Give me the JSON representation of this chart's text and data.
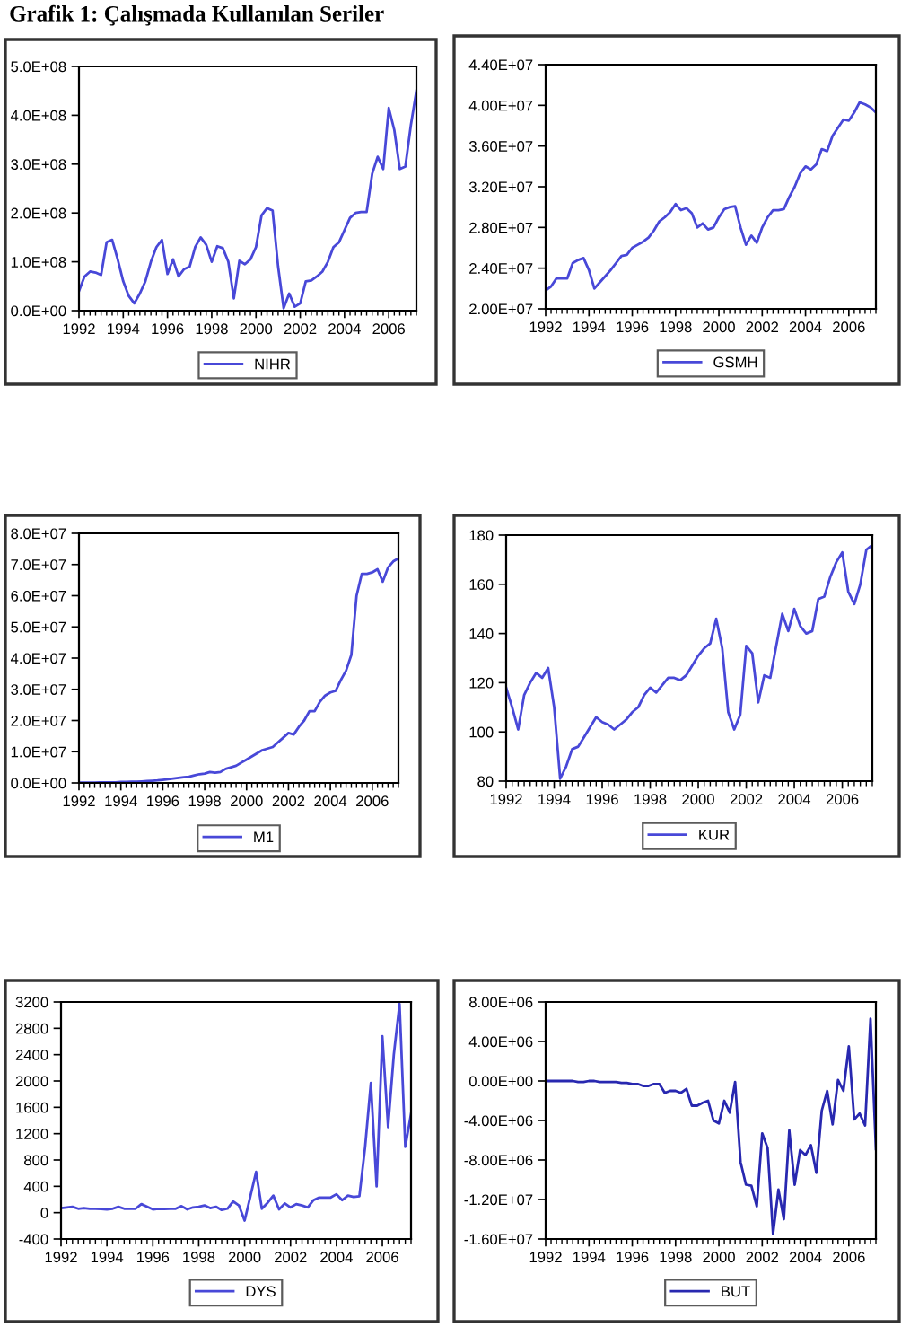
{
  "chart_data": [
    {
      "type": "line",
      "title": "Grafik 1: Çalışmada Kullanılan Seriler",
      "legend": "bottom",
      "grid": false,
      "x": [
        1992,
        1992.25,
        1992.5,
        1992.75,
        1993,
        1993.25,
        1993.5,
        1993.75,
        1994,
        1994.25,
        1994.5,
        1994.75,
        1995,
        1995.25,
        1995.5,
        1995.75,
        1996,
        1996.25,
        1996.5,
        1996.75,
        1997,
        1997.25,
        1997.5,
        1997.75,
        1998,
        1998.25,
        1998.5,
        1998.75,
        1999,
        1999.25,
        1999.5,
        1999.75,
        2000,
        2000.25,
        2000.5,
        2000.75,
        2001,
        2001.25,
        2001.5,
        2001.75,
        2002,
        2002.25,
        2002.5,
        2002.75,
        2003,
        2003.25,
        2003.5,
        2003.75,
        2004,
        2004.25,
        2004.5,
        2004.75,
        2005,
        2005.25,
        2005.5,
        2005.75,
        2006,
        2006.25,
        2006.5,
        2006.75,
        2007,
        2007.25
      ],
      "xlim": [
        1992,
        2007.25
      ],
      "xticks": [
        1992,
        1994,
        1996,
        1998,
        2000,
        2002,
        2004,
        2006
      ],
      "ylim": [
        0,
        500000000.0
      ],
      "yticks": [
        {
          "value": 0,
          "label": "0.0E+00"
        },
        {
          "value": 100000000.0,
          "label": "1.0E+08"
        },
        {
          "value": 200000000.0,
          "label": "2.0E+08"
        },
        {
          "value": 300000000.0,
          "label": "3.0E+08"
        },
        {
          "value": 400000000.0,
          "label": "4.0E+08"
        },
        {
          "value": 500000000.0,
          "label": "5.0E+08"
        }
      ],
      "series": [
        {
          "name": "NIHR",
          "color": "#4848d8",
          "values": [
            40000000.0,
            70000000.0,
            80000000.0,
            78000000.0,
            73000000.0,
            140000000.0,
            145000000.0,
            105000000.0,
            60000000.0,
            30000000.0,
            15000000.0,
            35000000.0,
            60000000.0,
            100000000.0,
            130000000.0,
            145000000.0,
            75000000.0,
            105000000.0,
            70000000.0,
            85000000.0,
            90000000.0,
            130000000.0,
            150000000.0,
            135000000.0,
            100000000.0,
            132000000.0,
            128000000.0,
            100000000.0,
            25000000.0,
            102000000.0,
            95000000.0,
            105000000.0,
            130000000.0,
            195000000.0,
            210000000.0,
            205000000.0,
            90000000.0,
            5000000.0,
            35000000.0,
            8000000.0,
            15000000.0,
            60000000.0,
            62000000.0,
            70000000.0,
            80000000.0,
            100000000.0,
            130000000.0,
            140000000.0,
            165000000.0,
            190000000.0,
            200000000.0,
            202000000.0,
            202000000.0,
            280000000.0,
            315000000.0,
            290000000.0,
            415000000.0,
            370000000.0,
            290000000.0,
            295000000.0,
            380000000.0,
            450000000.0
          ]
        }
      ]
    },
    {
      "type": "line",
      "legend": "bottom",
      "grid": false,
      "x": [
        1992,
        1992.25,
        1992.5,
        1992.75,
        1993,
        1993.25,
        1993.5,
        1993.75,
        1994,
        1994.25,
        1994.5,
        1994.75,
        1995,
        1995.25,
        1995.5,
        1995.75,
        1996,
        1996.25,
        1996.5,
        1996.75,
        1997,
        1997.25,
        1997.5,
        1997.75,
        1998,
        1998.25,
        1998.5,
        1998.75,
        1999,
        1999.25,
        1999.5,
        1999.75,
        2000,
        2000.25,
        2000.5,
        2000.75,
        2001,
        2001.25,
        2001.5,
        2001.75,
        2002,
        2002.25,
        2002.5,
        2002.75,
        2003,
        2003.25,
        2003.5,
        2003.75,
        2004,
        2004.25,
        2004.5,
        2004.75,
        2005,
        2005.25,
        2005.5,
        2005.75,
        2006,
        2006.25,
        2006.5,
        2006.75,
        2007,
        2007.25
      ],
      "xlim": [
        1992,
        2007.25
      ],
      "xticks": [
        1992,
        1994,
        1996,
        1998,
        2000,
        2002,
        2004,
        2006
      ],
      "ylim": [
        20000000.0,
        44000000.0
      ],
      "yticks": [
        {
          "value": 20000000.0,
          "label": "2.00E+07"
        },
        {
          "value": 24000000.0,
          "label": "2.40E+07"
        },
        {
          "value": 28000000.0,
          "label": "2.80E+07"
        },
        {
          "value": 32000000.0,
          "label": "3.20E+07"
        },
        {
          "value": 36000000.0,
          "label": "3.60E+07"
        },
        {
          "value": 40000000.0,
          "label": "4.00E+07"
        },
        {
          "value": 44000000.0,
          "label": "4.40E+07"
        }
      ],
      "series": [
        {
          "name": "GSMH",
          "color": "#4848d8",
          "values": [
            21800000.0,
            22200000.0,
            23000000.0,
            23000000.0,
            23000000.0,
            24500000.0,
            24800000.0,
            25000000.0,
            23800000.0,
            22000000.0,
            22600000.0,
            23200000.0,
            23800000.0,
            24500000.0,
            25200000.0,
            25300000.0,
            26000000.0,
            26300000.0,
            26600000.0,
            27000000.0,
            27700000.0,
            28600000.0,
            29000000.0,
            29500000.0,
            30300000.0,
            29700000.0,
            29900000.0,
            29400000.0,
            28000000.0,
            28400000.0,
            27800000.0,
            28000000.0,
            29000000.0,
            29800000.0,
            30000000.0,
            30100000.0,
            28000000.0,
            26300000.0,
            27200000.0,
            26500000.0,
            28000000.0,
            29000000.0,
            29700000.0,
            29700000.0,
            29800000.0,
            31000000.0,
            32000000.0,
            33300000.0,
            34000000.0,
            33700000.0,
            34200000.0,
            35700000.0,
            35500000.0,
            37000000.0,
            37800000.0,
            38600000.0,
            38500000.0,
            39300000.0,
            40300000.0,
            40100000.0,
            39800000.0,
            39300000.0
          ]
        }
      ]
    },
    {
      "type": "line",
      "legend": "bottom",
      "grid": false,
      "x": [
        1992,
        1992.25,
        1992.5,
        1992.75,
        1993,
        1993.25,
        1993.5,
        1993.75,
        1994,
        1994.25,
        1994.5,
        1994.75,
        1995,
        1995.25,
        1995.5,
        1995.75,
        1996,
        1996.25,
        1996.5,
        1996.75,
        1997,
        1997.25,
        1997.5,
        1997.75,
        1998,
        1998.25,
        1998.5,
        1998.75,
        1999,
        1999.25,
        1999.5,
        1999.75,
        2000,
        2000.25,
        2000.5,
        2000.75,
        2001,
        2001.25,
        2001.5,
        2001.75,
        2002,
        2002.25,
        2002.5,
        2002.75,
        2003,
        2003.25,
        2003.5,
        2003.75,
        2004,
        2004.25,
        2004.5,
        2004.75,
        2005,
        2005.25,
        2005.5,
        2005.75,
        2006,
        2006.25,
        2006.5,
        2006.75,
        2007,
        2007.25
      ],
      "xlim": [
        1992,
        2007.25
      ],
      "xticks": [
        1992,
        1994,
        1996,
        1998,
        2000,
        2002,
        2004,
        2006
      ],
      "ylim": [
        0,
        80000000.0
      ],
      "yticks": [
        {
          "value": 0,
          "label": "0.0E+00"
        },
        {
          "value": 10000000.0,
          "label": "1.0E+07"
        },
        {
          "value": 20000000.0,
          "label": "2.0E+07"
        },
        {
          "value": 30000000.0,
          "label": "3.0E+07"
        },
        {
          "value": 40000000.0,
          "label": "4.0E+07"
        },
        {
          "value": 50000000.0,
          "label": "5.0E+07"
        },
        {
          "value": 60000000.0,
          "label": "6.0E+07"
        },
        {
          "value": 70000000.0,
          "label": "7.0E+07"
        },
        {
          "value": 80000000.0,
          "label": "8.0E+07"
        }
      ],
      "series": [
        {
          "name": "M1",
          "color": "#4848d8",
          "values": [
            100000.0,
            100000.0,
            100000.0,
            100000.0,
            200000.0,
            200000.0,
            200000.0,
            200000.0,
            300000.0,
            300000.0,
            400000.0,
            400000.0,
            500000.0,
            600000.0,
            700000.0,
            800000.0,
            1000000.0,
            1200000.0,
            1400000.0,
            1600000.0,
            1800000.0,
            2000000.0,
            2400000.0,
            2800000.0,
            3000000.0,
            3500000.0,
            3300000.0,
            3500000.0,
            4500000.0,
            5000000.0,
            5500000.0,
            6500000.0,
            7500000.0,
            8500000.0,
            9500000.0,
            10500000.0,
            11000000.0,
            11500000.0,
            13000000.0,
            14500000.0,
            16000000.0,
            15500000.0,
            18000000.0,
            20000000.0,
            23000000.0,
            23000000.0,
            26000000.0,
            28000000.0,
            29000000.0,
            29500000.0,
            33000000.0,
            36000000.0,
            41000000.0,
            60000000.0,
            67000000.0,
            67000000.0,
            67500000.0,
            68500000.0,
            64500000.0,
            69000000.0,
            71000000.0,
            72000000.0
          ]
        }
      ]
    },
    {
      "type": "line",
      "legend": "bottom",
      "grid": false,
      "x": [
        1992,
        1992.25,
        1992.5,
        1992.75,
        1993,
        1993.25,
        1993.5,
        1993.75,
        1994,
        1994.25,
        1994.5,
        1994.75,
        1995,
        1995.25,
        1995.5,
        1995.75,
        1996,
        1996.25,
        1996.5,
        1996.75,
        1997,
        1997.25,
        1997.5,
        1997.75,
        1998,
        1998.25,
        1998.5,
        1998.75,
        1999,
        1999.25,
        1999.5,
        1999.75,
        2000,
        2000.25,
        2000.5,
        2000.75,
        2001,
        2001.25,
        2001.5,
        2001.75,
        2002,
        2002.25,
        2002.5,
        2002.75,
        2003,
        2003.25,
        2003.5,
        2003.75,
        2004,
        2004.25,
        2004.5,
        2004.75,
        2005,
        2005.25,
        2005.5,
        2005.75,
        2006,
        2006.25,
        2006.5,
        2006.75,
        2007,
        2007.25
      ],
      "xlim": [
        1992,
        2007.25
      ],
      "xticks": [
        1992,
        1994,
        1996,
        1998,
        2000,
        2002,
        2004,
        2006
      ],
      "ylim": [
        80,
        180
      ],
      "yticks": [
        80,
        100,
        120,
        140,
        160,
        180
      ],
      "series": [
        {
          "name": "KUR",
          "color": "#4848d8",
          "values": [
            118,
            110,
            101,
            115,
            120,
            124,
            122,
            126,
            110,
            81,
            86,
            93,
            94,
            98,
            102,
            106,
            104,
            103,
            101,
            103,
            105,
            108,
            110,
            115,
            118,
            116,
            119,
            122,
            122,
            121,
            123,
            127,
            131,
            134,
            136,
            146,
            134,
            108,
            101,
            107,
            135,
            132,
            112,
            123,
            122,
            135,
            148,
            141,
            150,
            143,
            140,
            141,
            154,
            155,
            163,
            169,
            173,
            157,
            152,
            160,
            174,
            176
          ]
        }
      ]
    },
    {
      "type": "line",
      "legend": "bottom",
      "grid": false,
      "x": [
        1992,
        1992.25,
        1992.5,
        1992.75,
        1993,
        1993.25,
        1993.5,
        1993.75,
        1994,
        1994.25,
        1994.5,
        1994.75,
        1995,
        1995.25,
        1995.5,
        1995.75,
        1996,
        1996.25,
        1996.5,
        1996.75,
        1997,
        1997.25,
        1997.5,
        1997.75,
        1998,
        1998.25,
        1998.5,
        1998.75,
        1999,
        1999.25,
        1999.5,
        1999.75,
        2000,
        2000.25,
        2000.5,
        2000.75,
        2001,
        2001.25,
        2001.5,
        2001.75,
        2002,
        2002.25,
        2002.5,
        2002.75,
        2003,
        2003.25,
        2003.5,
        2003.75,
        2004,
        2004.25,
        2004.5,
        2004.75,
        2005,
        2005.25,
        2005.5,
        2005.75,
        2006,
        2006.25,
        2006.5,
        2006.75,
        2007,
        2007.25
      ],
      "xlim": [
        1992,
        2007.25
      ],
      "xticks": [
        1992,
        1994,
        1996,
        1998,
        2000,
        2002,
        2004,
        2006
      ],
      "ylim": [
        -400,
        3200
      ],
      "yticks": [
        -400,
        0,
        400,
        800,
        1200,
        1600,
        2000,
        2400,
        2800,
        3200
      ],
      "series": [
        {
          "name": "DYS",
          "color": "#4848d8",
          "values": [
            70,
            80,
            90,
            60,
            70,
            60,
            60,
            55,
            50,
            60,
            90,
            60,
            60,
            60,
            130,
            90,
            50,
            60,
            55,
            60,
            60,
            100,
            50,
            80,
            90,
            110,
            70,
            90,
            40,
            60,
            170,
            110,
            -120,
            250,
            620,
            60,
            150,
            260,
            50,
            140,
            80,
            130,
            110,
            80,
            190,
            230,
            230,
            230,
            280,
            190,
            260,
            240,
            250,
            1000,
            1970,
            400,
            2680,
            1300,
            2400,
            3170,
            1000,
            1500
          ]
        }
      ]
    },
    {
      "type": "line",
      "legend": "bottom",
      "grid": false,
      "x": [
        1992,
        1992.25,
        1992.5,
        1992.75,
        1993,
        1993.25,
        1993.5,
        1993.75,
        1994,
        1994.25,
        1994.5,
        1994.75,
        1995,
        1995.25,
        1995.5,
        1995.75,
        1996,
        1996.25,
        1996.5,
        1996.75,
        1997,
        1997.25,
        1997.5,
        1997.75,
        1998,
        1998.25,
        1998.5,
        1998.75,
        1999,
        1999.25,
        1999.5,
        1999.75,
        2000,
        2000.25,
        2000.5,
        2000.75,
        2001,
        2001.25,
        2001.5,
        2001.75,
        2002,
        2002.25,
        2002.5,
        2002.75,
        2003,
        2003.25,
        2003.5,
        2003.75,
        2004,
        2004.25,
        2004.5,
        2004.75,
        2005,
        2005.25,
        2005.5,
        2005.75,
        2006,
        2006.25,
        2006.5,
        2006.75,
        2007,
        2007.25
      ],
      "xlim": [
        1992,
        2007.25
      ],
      "xticks": [
        1992,
        1994,
        1996,
        1998,
        2000,
        2002,
        2004,
        2006
      ],
      "ylim": [
        -16000000.0,
        8000000.0
      ],
      "yticks": [
        {
          "value": -16000000.0,
          "label": "-1.60E+07"
        },
        {
          "value": -12000000.0,
          "label": "-1.20E+07"
        },
        {
          "value": -8000000.0,
          "label": "-8.00E+06"
        },
        {
          "value": -4000000.0,
          "label": "-4.00E+06"
        },
        {
          "value": 0,
          "label": "0.00E+00"
        },
        {
          "value": 4000000.0,
          "label": "4.00E+06"
        },
        {
          "value": 8000000.0,
          "label": "8.00E+06"
        }
      ],
      "series": [
        {
          "name": "BUT",
          "color": "#2828b0",
          "values": [
            0,
            0,
            0,
            0,
            0,
            0,
            -100000.0,
            -100000.0,
            0,
            0,
            -100000.0,
            -100000.0,
            -100000.0,
            -100000.0,
            -200000.0,
            -200000.0,
            -300000.0,
            -300000.0,
            -500000.0,
            -500000.0,
            -300000.0,
            -300000.0,
            -1200000.0,
            -1000000.0,
            -1000000.0,
            -1200000.0,
            -800000.0,
            -2500000.0,
            -2500000.0,
            -2200000.0,
            -2000000.0,
            -4000000.0,
            -4300000.0,
            -2000000.0,
            -3200000.0,
            -100000.0,
            -8200000.0,
            -10500000.0,
            -10600000.0,
            -12700000.0,
            -5300000.0,
            -6800000.0,
            -15500000.0,
            -11000000.0,
            -14000000.0,
            -5000000.0,
            -10500000.0,
            -7000000.0,
            -7500000.0,
            -6500000.0,
            -9300000.0,
            -3000000.0,
            -1000000.0,
            -4400000.0,
            100000.0,
            -1000000.0,
            3500000.0,
            -3900000.0,
            -3300000.0,
            -4500000.0,
            6300000.0,
            -6900000.0
          ]
        }
      ]
    }
  ]
}
